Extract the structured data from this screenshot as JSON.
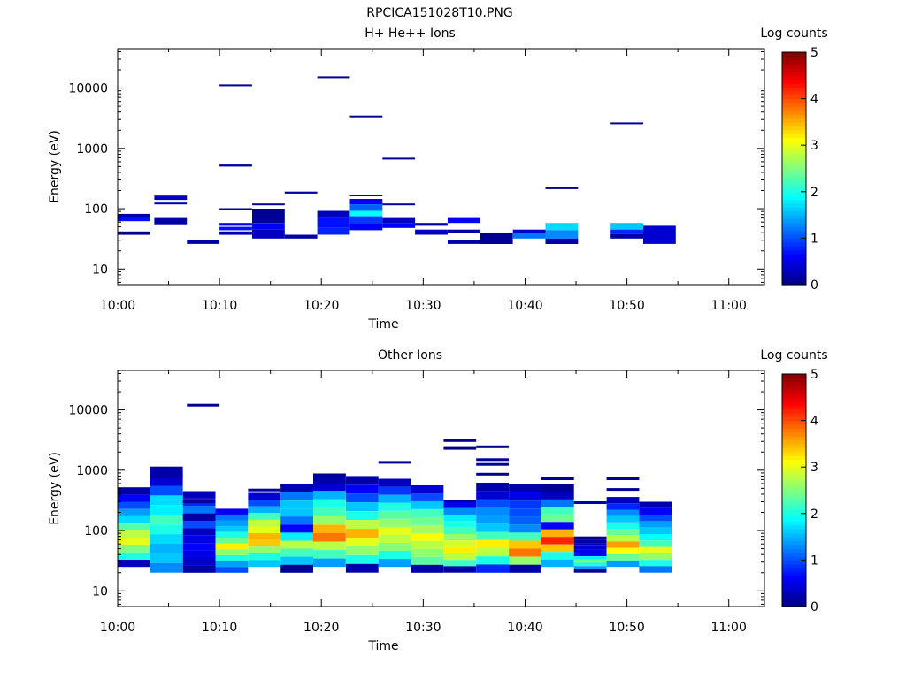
{
  "figure_title": "RPCICA151028T10.PNG",
  "chart_data": [
    {
      "type": "heatmap",
      "title": "H+ He++ Ions",
      "xlabel": "Time",
      "ylabel": "Energy (eV)",
      "x_ticks": [
        "10:00",
        "10:10",
        "10:20",
        "10:30",
        "10:40",
        "10:50",
        "11:00"
      ],
      "y_ticks": [
        "10",
        "100",
        "1000",
        "10000"
      ],
      "xlim_minutes_after_10_00": [
        0,
        63.5
      ],
      "ylim_eV": [
        5.5,
        45000
      ],
      "y_scale": "log",
      "colorbar": {
        "label": "Log counts",
        "range": [
          0,
          5
        ],
        "ticks": [
          "0",
          "1",
          "2",
          "3",
          "4",
          "5"
        ]
      },
      "cells": [
        {
          "t": [
            0,
            3.2
          ],
          "e": [
            72,
            82
          ],
          "v": 0.2
        },
        {
          "t": [
            0,
            3.2
          ],
          "e": [
            62,
            72
          ],
          "v": 0.7
        },
        {
          "t": [
            0,
            3.2
          ],
          "e": [
            37,
            42
          ],
          "v": 0.1
        },
        {
          "t": [
            3.6,
            6.8
          ],
          "e": [
            140,
            165
          ],
          "v": 0.3
        },
        {
          "t": [
            3.6,
            6.8
          ],
          "e": [
            118,
            126
          ],
          "v": 0.2
        },
        {
          "t": [
            3.6,
            6.8
          ],
          "e": [
            55,
            70
          ],
          "v": 0.2
        },
        {
          "t": [
            6.8,
            10
          ],
          "e": [
            26,
            30
          ],
          "v": 0.2
        },
        {
          "t": [
            10,
            13.2
          ],
          "e": [
            10800,
            11500
          ],
          "v": 0.1
        },
        {
          "t": [
            10,
            13.2
          ],
          "e": [
            500,
            540
          ],
          "v": 0.1
        },
        {
          "t": [
            10,
            13.2
          ],
          "e": [
            95,
            102
          ],
          "v": 0.1
        },
        {
          "t": [
            10,
            13.2
          ],
          "e": [
            52,
            58
          ],
          "v": 0.5
        },
        {
          "t": [
            10,
            13.2
          ],
          "e": [
            44,
            50
          ],
          "v": 0.7
        },
        {
          "t": [
            10,
            13.2
          ],
          "e": [
            37,
            42
          ],
          "v": 0.2
        },
        {
          "t": [
            13.2,
            16.4
          ],
          "e": [
            116,
            122
          ],
          "v": 0.2
        },
        {
          "t": [
            13.2,
            16.4
          ],
          "e": [
            58,
            100
          ],
          "v": 0.1
        },
        {
          "t": [
            13.2,
            16.4
          ],
          "e": [
            45,
            58
          ],
          "v": 0.6
        },
        {
          "t": [
            13.2,
            16.4
          ],
          "e": [
            32,
            45
          ],
          "v": 0.3
        },
        {
          "t": [
            16.4,
            19.6
          ],
          "e": [
            178,
            192
          ],
          "v": 0.2
        },
        {
          "t": [
            16.4,
            19.6
          ],
          "e": [
            32,
            37
          ],
          "v": 0.2
        },
        {
          "t": [
            19.6,
            22.8
          ],
          "e": [
            14800,
            15600
          ],
          "v": 0.1
        },
        {
          "t": [
            19.6,
            22.8
          ],
          "e": [
            70,
            92
          ],
          "v": 0.3
        },
        {
          "t": [
            19.6,
            22.8
          ],
          "e": [
            48,
            70
          ],
          "v": 0.7
        },
        {
          "t": [
            19.6,
            22.8
          ],
          "e": [
            37,
            48
          ],
          "v": 0.8
        },
        {
          "t": [
            22.8,
            26
          ],
          "e": [
            3300,
            3500
          ],
          "v": 0.1
        },
        {
          "t": [
            22.8,
            26
          ],
          "e": [
            162,
            172
          ],
          "v": 0.3
        },
        {
          "t": [
            22.8,
            26
          ],
          "e": [
            118,
            145
          ],
          "v": 0.6
        },
        {
          "t": [
            22.8,
            26
          ],
          "e": [
            92,
            118
          ],
          "v": 1.1
        },
        {
          "t": [
            22.8,
            26
          ],
          "e": [
            75,
            92
          ],
          "v": 1.9
        },
        {
          "t": [
            22.8,
            26
          ],
          "e": [
            58,
            75
          ],
          "v": 0.9
        },
        {
          "t": [
            22.8,
            26
          ],
          "e": [
            44,
            58
          ],
          "v": 0.6
        },
        {
          "t": [
            26,
            29.2
          ],
          "e": [
            660,
            700
          ],
          "v": 0.1
        },
        {
          "t": [
            26,
            29.2
          ],
          "e": [
            116,
            122
          ],
          "v": 0.2
        },
        {
          "t": [
            26,
            29.2
          ],
          "e": [
            58,
            70
          ],
          "v": 0.3
        },
        {
          "t": [
            26,
            29.2
          ],
          "e": [
            48,
            58
          ],
          "v": 0.6
        },
        {
          "t": [
            29.2,
            32.4
          ],
          "e": [
            52,
            58
          ],
          "v": 0.2
        },
        {
          "t": [
            29.2,
            32.4
          ],
          "e": [
            37,
            45
          ],
          "v": 0.3
        },
        {
          "t": [
            32.4,
            35.6
          ],
          "e": [
            58,
            70
          ],
          "v": 0.6
        },
        {
          "t": [
            32.4,
            35.6
          ],
          "e": [
            40,
            45
          ],
          "v": 0.2
        },
        {
          "t": [
            32.4,
            35.6
          ],
          "e": [
            26,
            30
          ],
          "v": 0.2
        },
        {
          "t": [
            35.6,
            38.8
          ],
          "e": [
            26,
            40
          ],
          "v": 0.1
        },
        {
          "t": [
            38.8,
            42
          ],
          "e": [
            40,
            45
          ],
          "v": 0.4
        },
        {
          "t": [
            38.8,
            42
          ],
          "e": [
            32,
            40
          ],
          "v": 1.2
        },
        {
          "t": [
            42,
            45.2
          ],
          "e": [
            218,
            226
          ],
          "v": 0.1
        },
        {
          "t": [
            42,
            45.2
          ],
          "e": [
            44,
            58
          ],
          "v": 1.7
        },
        {
          "t": [
            42,
            45.2
          ],
          "e": [
            32,
            44
          ],
          "v": 1.3
        },
        {
          "t": [
            42,
            45.2
          ],
          "e": [
            26,
            32
          ],
          "v": 0.2
        },
        {
          "t": [
            48.4,
            51.6
          ],
          "e": [
            2600,
            2700
          ],
          "v": 0.1
        },
        {
          "t": [
            48.4,
            51.6
          ],
          "e": [
            45,
            58
          ],
          "v": 1.6
        },
        {
          "t": [
            48.4,
            51.6
          ],
          "e": [
            38,
            45
          ],
          "v": 0.8
        },
        {
          "t": [
            48.4,
            51.6
          ],
          "e": [
            32,
            38
          ],
          "v": 0.2
        },
        {
          "t": [
            51.6,
            54.8
          ],
          "e": [
            26,
            52
          ],
          "v": 0.4
        }
      ]
    },
    {
      "type": "heatmap",
      "title": "Other Ions",
      "xlabel": "Time",
      "ylabel": "Energy (eV)",
      "x_ticks": [
        "10:00",
        "10:10",
        "10:20",
        "10:30",
        "10:40",
        "10:50",
        "11:00"
      ],
      "y_ticks": [
        "10",
        "100",
        "1000",
        "10000"
      ],
      "xlim_minutes_after_10_00": [
        0,
        63.5
      ],
      "ylim_eV": [
        5.5,
        45000
      ],
      "y_scale": "log",
      "colorbar": {
        "label": "Log counts",
        "range": [
          0,
          5
        ],
        "ticks": [
          "0",
          "1",
          "2",
          "3",
          "4",
          "5"
        ]
      },
      "columns": [
        {
          "t": [
            0,
            3.2
          ],
          "top": 520,
          "bottom": 25,
          "profile": [
            0.2,
            0.6,
            1.0,
            1.4,
            1.7,
            2.3,
            2.8,
            3.0,
            2.5,
            2.0,
            0.3
          ]
        },
        {
          "t": [
            3.2,
            6.4
          ],
          "top": 1150,
          "bottom": 20,
          "profile": [
            0.2,
            0.4,
            1.0,
            1.7,
            1.8,
            2.2,
            2.0,
            1.7,
            1.5,
            1.6,
            1.3
          ]
        },
        {
          "t": [
            6.4,
            9.6
          ],
          "top": 450,
          "bottom": 20,
          "profile": [
            0.3,
            0.8,
            1.2,
            0.2,
            1.0,
            0.3,
            0.5,
            0.6,
            0.5,
            0.4,
            0.2
          ]
        },
        {
          "t": [
            9.6,
            12.8
          ],
          "top": 230,
          "bottom": 20,
          "profile": [
            0.6,
            1.2,
            1.4,
            1.6,
            2.0,
            2.4,
            3.2,
            2.6,
            2.0,
            1.4,
            1.0
          ]
        },
        {
          "t": [
            12.8,
            16
          ],
          "top": 420,
          "bottom": 25,
          "profile": [
            0.4,
            1.0,
            1.5,
            2.2,
            2.8,
            3.0,
            3.5,
            3.4,
            2.6,
            2.0,
            1.6
          ]
        },
        {
          "t": [
            16,
            19.2
          ],
          "top": 580,
          "bottom": 20,
          "profile": [
            0.3,
            1.2,
            1.6,
            1.6,
            1.2,
            0.6,
            1.8,
            2.8,
            2.2,
            1.6,
            0.1
          ]
        },
        {
          "t": [
            19.2,
            22.4
          ],
          "top": 860,
          "bottom": 25,
          "profile": [
            0.2,
            0.4,
            1.5,
            2.0,
            2.2,
            2.6,
            3.5,
            3.8,
            2.8,
            2.2,
            1.4
          ]
        },
        {
          "t": [
            22.4,
            25.6
          ],
          "top": 800,
          "bottom": 20,
          "profile": [
            0.2,
            0.6,
            1.0,
            1.6,
            2.0,
            2.8,
            3.5,
            3.0,
            2.6,
            2.0,
            0.2
          ]
        },
        {
          "t": [
            25.6,
            28.8
          ],
          "top": 720,
          "bottom": 25,
          "profile": [
            0.3,
            0.9,
            1.5,
            2.0,
            2.3,
            2.6,
            3.0,
            2.8,
            2.5,
            2.0,
            1.4
          ]
        },
        {
          "t": [
            28.8,
            32
          ],
          "top": 560,
          "bottom": 20,
          "profile": [
            0.4,
            1.0,
            1.6,
            2.2,
            2.4,
            2.7,
            3.1,
            2.8,
            2.6,
            2.3,
            0.2
          ]
        },
        {
          "t": [
            32,
            35.2
          ],
          "top": 300,
          "bottom": 20,
          "profile": [
            0.5,
            1.3,
            1.8,
            2.0,
            2.2,
            2.6,
            2.9,
            3.2,
            2.8,
            2.2,
            0.2
          ]
        },
        {
          "t": [
            35.2,
            38.4
          ],
          "top": 620,
          "bottom": 20,
          "profile": [
            0.2,
            0.4,
            1.0,
            1.3,
            1.4,
            1.6,
            2.2,
            3.2,
            2.8,
            2.0,
            0.8
          ]
        },
        {
          "t": [
            38.4,
            41.6
          ],
          "top": 580,
          "bottom": 20,
          "profile": [
            0.2,
            0.5,
            0.9,
            1.0,
            1.1,
            1.3,
            2.2,
            3.4,
            3.8,
            2.6,
            0.2
          ]
        },
        {
          "t": [
            41.6,
            44.8
          ],
          "top": 580,
          "bottom": 25,
          "profile": [
            0.1,
            0.3,
            1.2,
            2.2,
            2.4,
            0.6,
            3.5,
            4.2,
            3.4,
            2.0,
            1.5
          ]
        },
        {
          "t": [
            44.8,
            48
          ],
          "top": 80,
          "bottom": 20,
          "profile": [
            0.1,
            0.2,
            0.3,
            0.4,
            0.5,
            0.6,
            1.8,
            2.4,
            2.0,
            1.4,
            0.1
          ]
        },
        {
          "t": [
            48,
            51.2
          ],
          "top": 360,
          "bottom": 25,
          "profile": [
            0.3,
            0.8,
            1.3,
            1.6,
            2.0,
            2.4,
            2.8,
            3.6,
            3.1,
            2.4,
            1.4
          ]
        },
        {
          "t": [
            51.2,
            54.4
          ],
          "top": 300,
          "bottom": 20,
          "profile": [
            0.2,
            0.6,
            1.0,
            1.4,
            1.6,
            1.9,
            2.2,
            3.0,
            2.6,
            2.0,
            1.2
          ]
        }
      ],
      "lines": [
        {
          "t": [
            6.8,
            10
          ],
          "e": 12000,
          "v": 0.1
        },
        {
          "t": [
            3.2,
            6.4
          ],
          "e": 880,
          "v": 0.2
        },
        {
          "t": [
            3.2,
            6.4
          ],
          "e": 780,
          "v": 0.2
        },
        {
          "t": [
            6.4,
            9.6
          ],
          "e": 300,
          "v": 0.2
        },
        {
          "t": [
            6.4,
            9.6
          ],
          "e": 180,
          "v": 0.2
        },
        {
          "t": [
            12.8,
            16
          ],
          "e": 470,
          "v": 0.2
        },
        {
          "t": [
            16,
            19.2
          ],
          "e": 560,
          "v": 0.2
        },
        {
          "t": [
            16,
            19.2
          ],
          "e": 470,
          "v": 0.2
        },
        {
          "t": [
            19.2,
            22.4
          ],
          "e": 840,
          "v": 0.1
        },
        {
          "t": [
            19.2,
            22.4
          ],
          "e": 620,
          "v": 0.2
        },
        {
          "t": [
            25.6,
            28.8
          ],
          "e": 1350,
          "v": 0.1
        },
        {
          "t": [
            32,
            35.2
          ],
          "e": 3100,
          "v": 0.1
        },
        {
          "t": [
            32,
            35.2
          ],
          "e": 2300,
          "v": 0.1
        },
        {
          "t": [
            32,
            35.2
          ],
          "e": 310,
          "v": 0.2
        },
        {
          "t": [
            35.2,
            38.4
          ],
          "e": 2450,
          "v": 0.1
        },
        {
          "t": [
            35.2,
            38.4
          ],
          "e": 1500,
          "v": 0.1
        },
        {
          "t": [
            35.2,
            38.4
          ],
          "e": 1250,
          "v": 0.1
        },
        {
          "t": [
            35.2,
            38.4
          ],
          "e": 860,
          "v": 0.1
        },
        {
          "t": [
            41.6,
            44.8
          ],
          "e": 720,
          "v": 0.1
        },
        {
          "t": [
            44.8,
            48
          ],
          "e": 290,
          "v": 0.2
        },
        {
          "t": [
            48,
            51.2
          ],
          "e": 720,
          "v": 0.1
        },
        {
          "t": [
            48,
            51.2
          ],
          "e": 480,
          "v": 0.1
        }
      ]
    }
  ]
}
